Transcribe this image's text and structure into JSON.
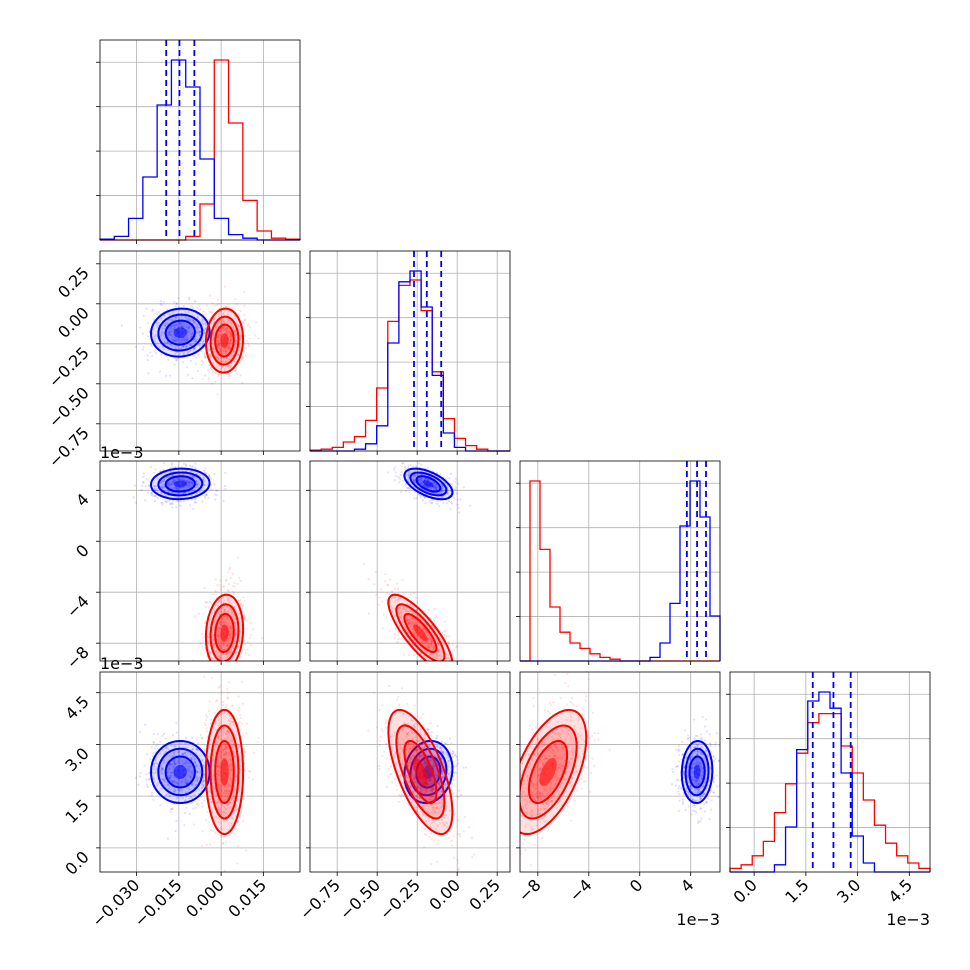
{
  "chart_data": {
    "type": "corner",
    "title": "",
    "grid": true,
    "series": [
      {
        "name": "",
        "color": "#0000ff",
        "mean": [
          -0.0145,
          -0.18,
          0.0045,
          0.0022
        ],
        "sd": [
          0.0052,
          0.075,
          0.0006,
          0.00045
        ],
        "quantiles": [
          [
            -0.0195,
            -0.0148,
            -0.0095
          ],
          [
            -0.27,
            -0.19,
            -0.1
          ],
          [
            0.0037,
            0.0045,
            0.0052
          ],
          [
            0.0017,
            0.0023,
            0.0028
          ]
        ]
      },
      {
        "name": "",
        "color": "#ff0000",
        "mean": [
          0.0012,
          -0.23,
          -0.0072,
          0.0022
        ],
        "sd": [
          0.0033,
          0.1,
          0.0015,
          0.0009
        ]
      }
    ],
    "parameters": [
      {
        "range": [
          -0.043,
          0.028
        ],
        "ticks": [
          -0.03,
          -0.015,
          0.0,
          0.015
        ],
        "tick_labels": [
          "−0.030",
          "−0.015",
          "0.000",
          "0.015"
        ],
        "offset": ""
      },
      {
        "range": [
          -0.92,
          0.33
        ],
        "ticks": [
          -0.75,
          -0.5,
          -0.25,
          0.0,
          0.25
        ],
        "tick_labels": [
          "−0.75",
          "−0.50",
          "−0.25",
          "0.00",
          "0.25"
        ],
        "offset": ""
      },
      {
        "range": [
          -0.0094,
          0.0063
        ],
        "ticks": [
          -0.008,
          -0.004,
          0.0,
          0.004
        ],
        "tick_labels": [
          "−8",
          "−4",
          "0",
          "4"
        ],
        "offset": "1e−3"
      },
      {
        "range": [
          -0.0007,
          0.0051
        ],
        "ticks": [
          0.0,
          0.0015,
          0.003,
          0.0045
        ],
        "tick_labels": [
          "0.0",
          "1.5",
          "3.0",
          "4.5"
        ],
        "offset": "1e−3"
      }
    ],
    "histograms": [
      {
        "param": 0,
        "bins": 14,
        "blue": [
          0.005,
          0.02,
          0.12,
          0.35,
          0.75,
          1.0,
          0.85,
          0.45,
          0.12,
          0.03,
          0.01,
          0,
          0,
          0
        ],
        "red": [
          0,
          0,
          0,
          0,
          0,
          0,
          0.02,
          0.2,
          1.0,
          0.65,
          0.22,
          0.05,
          0.01,
          0.005
        ]
      },
      {
        "param": 1,
        "bins": 18,
        "blue": [
          0,
          0,
          0,
          0,
          0.01,
          0.04,
          0.14,
          0.6,
          0.94,
          1.0,
          0.8,
          0.42,
          0.1,
          0.02,
          0,
          0,
          0,
          0
        ],
        "red": [
          0.005,
          0.01,
          0.02,
          0.05,
          0.08,
          0.17,
          0.35,
          0.72,
          0.92,
          0.95,
          0.78,
          0.44,
          0.18,
          0.07,
          0.03,
          0.01,
          0,
          0
        ]
      },
      {
        "param": 2,
        "bins": 20,
        "blue": [
          0,
          0,
          0,
          0,
          0,
          0,
          0,
          0,
          0,
          0,
          0,
          0,
          0,
          0.02,
          0.1,
          0.32,
          0.75,
          1.0,
          0.8,
          0.25
        ],
        "red": [
          0,
          1.0,
          0.62,
          0.3,
          0.16,
          0.1,
          0.07,
          0.04,
          0.02,
          0.01,
          0,
          0,
          0,
          0,
          0,
          0,
          0,
          0,
          0,
          0
        ]
      },
      {
        "param": 3,
        "bins": 18,
        "blue": [
          0,
          0,
          0,
          0,
          0.04,
          0.25,
          0.68,
          0.95,
          1.0,
          0.91,
          0.55,
          0.2,
          0.05,
          0,
          0,
          0,
          0,
          0
        ],
        "red": [
          0.02,
          0.04,
          0.09,
          0.17,
          0.33,
          0.49,
          0.66,
          0.83,
          0.88,
          0.88,
          0.7,
          0.55,
          0.4,
          0.26,
          0.16,
          0.09,
          0.05,
          0.02
        ]
      }
    ]
  }
}
